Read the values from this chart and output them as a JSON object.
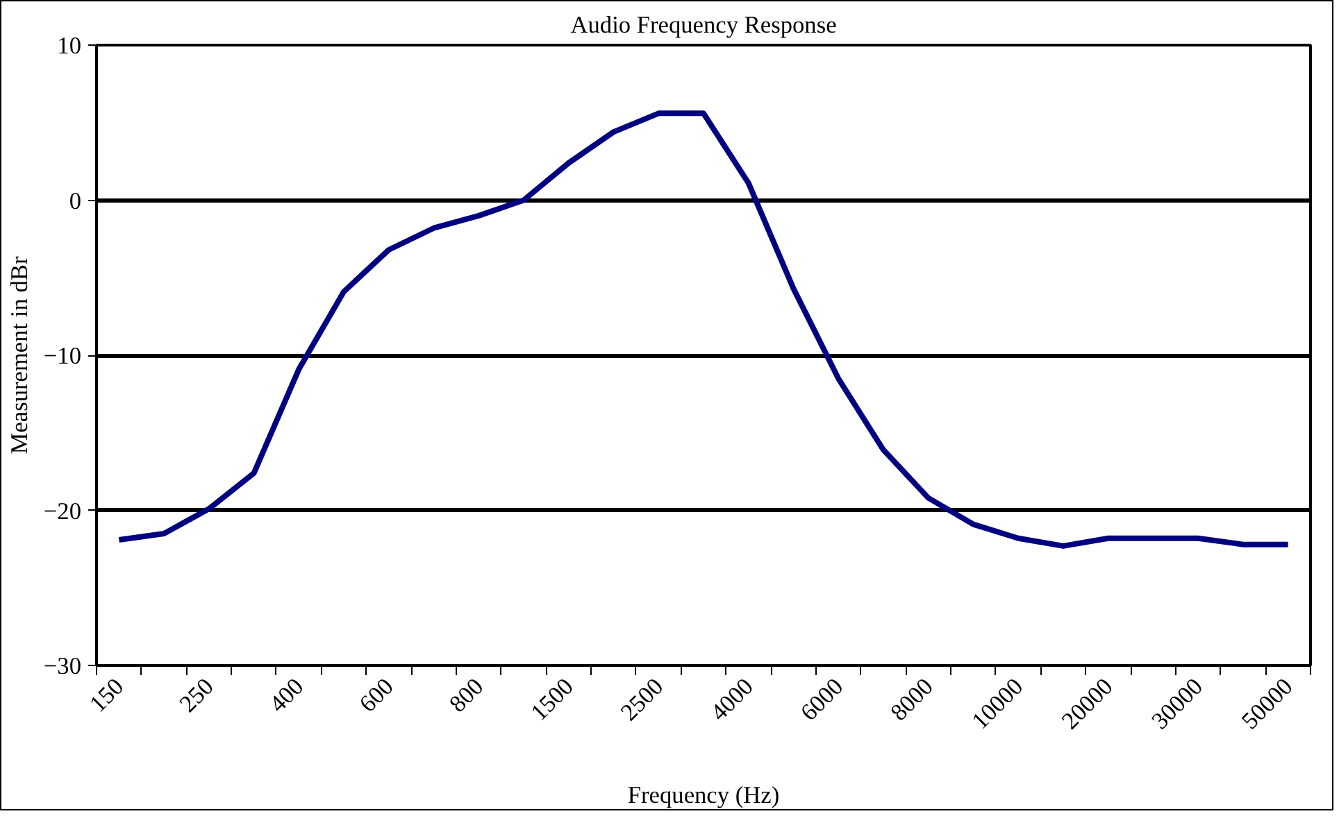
{
  "chart_data": {
    "type": "line",
    "title": "Audio Frequency Response",
    "xlabel": "Frequency (Hz)",
    "ylabel": "Measurement in dBr",
    "categories": [
      "150",
      null,
      "250",
      null,
      "400",
      null,
      "600",
      null,
      "800",
      null,
      "1500",
      null,
      "2500",
      null,
      "4000",
      null,
      "6000",
      null,
      "8000",
      null,
      "10000",
      null,
      "20000",
      null,
      "30000",
      null,
      "50000"
    ],
    "series": [
      {
        "color": "#000080",
        "values": [
          -21.9,
          -21.5,
          -19.9,
          -17.6,
          -10.9,
          -5.9,
          -3.2,
          -1.8,
          -1.0,
          0,
          2.4,
          4.4,
          5.6,
          5.6,
          1.1,
          -5.7,
          -11.5,
          -16.1,
          -19.2,
          -20.9,
          -21.8,
          -22.3,
          -21.8,
          -21.8,
          -21.8,
          -22.2,
          -22.2
        ]
      }
    ],
    "ylim": [
      -30,
      10
    ],
    "yticks": [
      -30,
      -20,
      -10,
      0,
      10
    ],
    "grid": "y",
    "marker": "none",
    "line_style": "solid"
  }
}
